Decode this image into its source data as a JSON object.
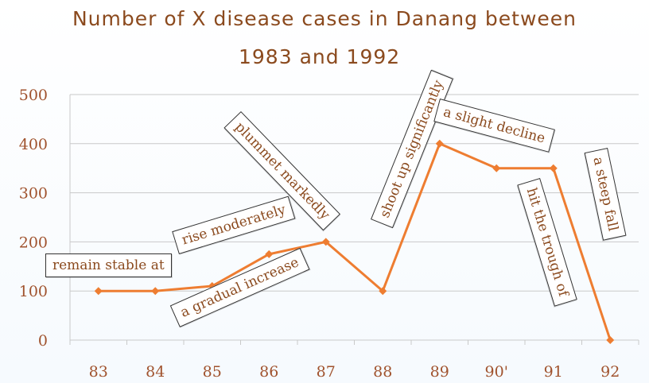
{
  "chart_data": {
    "type": "line",
    "title_line1": "Number of X disease cases in Danang between",
    "title_line2": "1983 and 1992",
    "categories": [
      "83",
      "84",
      "85",
      "86",
      "87",
      "88",
      "89",
      "90'",
      "91",
      "92"
    ],
    "series": [
      {
        "values": [
          100,
          100,
          110,
          175,
          200,
          100,
          400,
          350,
          350,
          0
        ]
      }
    ],
    "ylim": [
      0,
      500
    ],
    "yticks": [
      "0",
      "100",
      "200",
      "300",
      "400",
      "500"
    ],
    "grid": true,
    "colors": {
      "line": "#ee7d31",
      "title": "#8b4a1e",
      "axis_text": "#a0522d",
      "grid": "#c9c9c9"
    }
  },
  "annotations": [
    "remain stable at",
    "rise moderately",
    "a gradual increase",
    "plummet markedly",
    "shoot up significantly",
    "a slight decline",
    "hit the trough of",
    "a steep fall"
  ]
}
